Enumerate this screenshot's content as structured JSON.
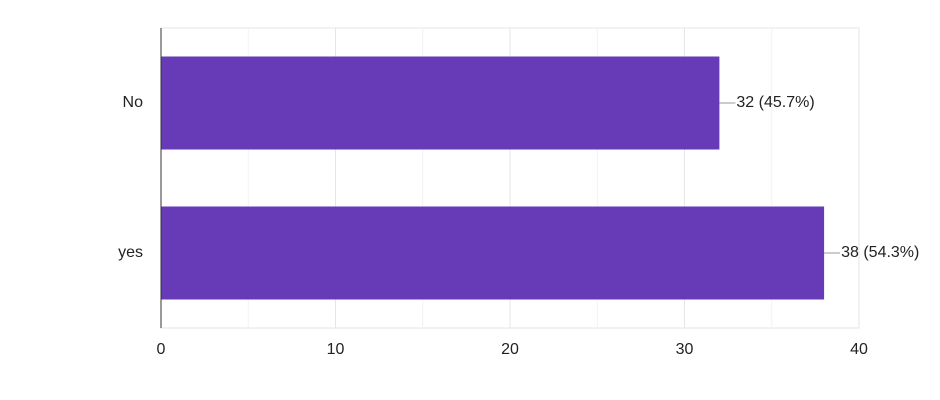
{
  "chart_data": {
    "type": "bar",
    "orientation": "horizontal",
    "categories": [
      "No",
      "yes"
    ],
    "values": [
      32,
      38
    ],
    "value_labels": [
      "32 (45.7%)",
      "38 (54.3%)"
    ],
    "color": "#673ab7",
    "xlim": [
      0,
      40
    ],
    "xticks": [
      0,
      10,
      20,
      30,
      40
    ],
    "minor_xticks": [
      5,
      15,
      25,
      35
    ],
    "grid": true
  }
}
